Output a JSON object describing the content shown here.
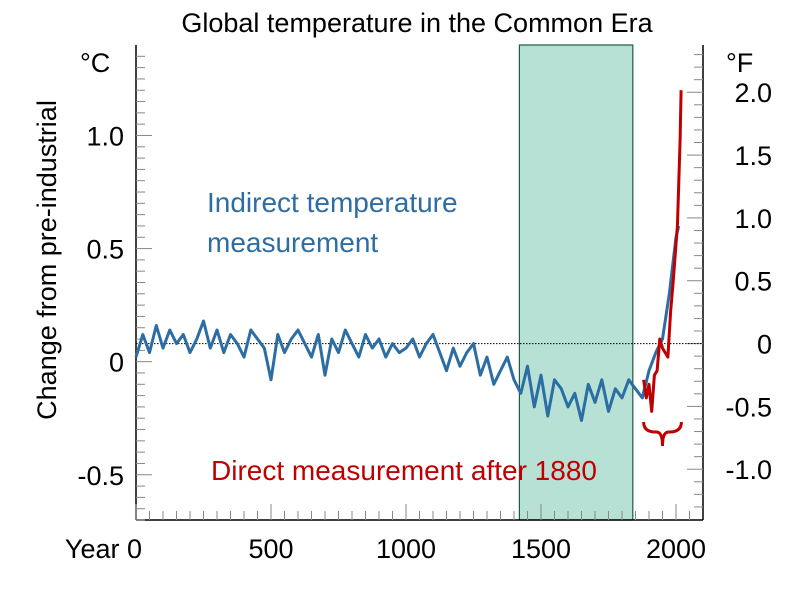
{
  "chart_data": {
    "type": "line",
    "title": "Global temperature in the Common Era",
    "ylabel": "Change from pre-industrial",
    "y_unit_left": "°C",
    "y_unit_right": "°F",
    "xlim": [
      0,
      2100
    ],
    "ylim": [
      -0.7,
      1.4
    ],
    "x_ticks": [
      {
        "value": 0,
        "label": "Year 0"
      },
      {
        "value": 500,
        "label": "500"
      },
      {
        "value": 1000,
        "label": "1000"
      },
      {
        "value": 1500,
        "label": "1500"
      },
      {
        "value": 2000,
        "label": "2000"
      }
    ],
    "y_ticks_left": [
      {
        "value": -0.5,
        "label": "-0.5"
      },
      {
        "value": 0,
        "label": "0"
      },
      {
        "value": 0.5,
        "label": "0.5"
      },
      {
        "value": 1.0,
        "label": "1.0"
      }
    ],
    "y_ticks_right": [
      {
        "value": -1.0,
        "label": "-1.0"
      },
      {
        "value": -0.5,
        "label": "-0.5"
      },
      {
        "value": 0,
        "label": "0"
      },
      {
        "value": 0.5,
        "label": "0.5"
      },
      {
        "value": 1.0,
        "label": "1.0"
      },
      {
        "value": 1.5,
        "label": "1.5"
      },
      {
        "value": 2.0,
        "label": "2.0"
      }
    ],
    "right_axis_offset_c": 0.08,
    "reference_line_y": 0.08,
    "highlight_region": {
      "x_start": 1420,
      "x_end": 1840,
      "color": "#b7e1d4"
    },
    "colors": {
      "indirect": "#2c6ea4",
      "direct": "#c00000",
      "axis": "#000000"
    },
    "series": [
      {
        "name": "Indirect temperature measurement",
        "x": [
          0,
          25,
          50,
          75,
          100,
          125,
          150,
          175,
          200,
          225,
          250,
          275,
          300,
          325,
          350,
          375,
          400,
          425,
          450,
          475,
          500,
          525,
          550,
          575,
          600,
          625,
          650,
          675,
          700,
          725,
          750,
          775,
          800,
          825,
          850,
          875,
          900,
          925,
          950,
          975,
          1000,
          1025,
          1050,
          1075,
          1100,
          1125,
          1150,
          1175,
          1200,
          1225,
          1250,
          1275,
          1300,
          1325,
          1350,
          1375,
          1400,
          1425,
          1450,
          1475,
          1500,
          1525,
          1550,
          1575,
          1600,
          1625,
          1650,
          1675,
          1700,
          1725,
          1750,
          1775,
          1800,
          1825,
          1850,
          1875,
          1900,
          1925,
          1950,
          1975,
          2000,
          2010
        ],
        "values": [
          0.02,
          0.12,
          0.04,
          0.16,
          0.06,
          0.14,
          0.08,
          0.12,
          0.04,
          0.1,
          0.18,
          0.06,
          0.14,
          0.04,
          0.12,
          0.08,
          0.02,
          0.14,
          0.1,
          0.06,
          -0.08,
          0.12,
          0.04,
          0.1,
          0.14,
          0.08,
          0.02,
          0.12,
          -0.06,
          0.1,
          0.04,
          0.14,
          0.08,
          0.02,
          0.12,
          0.06,
          0.1,
          0.02,
          0.08,
          0.04,
          0.06,
          0.1,
          0.02,
          0.08,
          0.12,
          0.04,
          -0.04,
          0.06,
          -0.02,
          0.04,
          0.08,
          -0.06,
          0.02,
          -0.1,
          -0.04,
          0.02,
          -0.08,
          -0.14,
          -0.02,
          -0.2,
          -0.06,
          -0.24,
          -0.08,
          -0.12,
          -0.2,
          -0.14,
          -0.26,
          -0.1,
          -0.18,
          -0.08,
          -0.22,
          -0.12,
          -0.16,
          -0.08,
          -0.12,
          -0.16,
          -0.04,
          0.04,
          0.1,
          0.3,
          0.55,
          0.6
        ]
      },
      {
        "name": "Direct measurement after 1880",
        "x": [
          1880,
          1890,
          1900,
          1910,
          1920,
          1930,
          1940,
          1950,
          1960,
          1970,
          1980,
          1990,
          2000,
          2005,
          2010,
          2015,
          2019
        ],
        "values": [
          -0.08,
          -0.16,
          -0.1,
          -0.22,
          -0.06,
          -0.04,
          0.1,
          0.06,
          0.04,
          0.02,
          0.22,
          0.36,
          0.52,
          0.6,
          0.78,
          0.98,
          1.2
        ]
      }
    ],
    "annotations": [
      {
        "text": "Indirect temperature",
        "color": "#2c6ea4"
      },
      {
        "text": "measurement",
        "color": "#2c6ea4"
      },
      {
        "text": "Direct measurement after 1880",
        "color": "#c00000"
      }
    ]
  }
}
